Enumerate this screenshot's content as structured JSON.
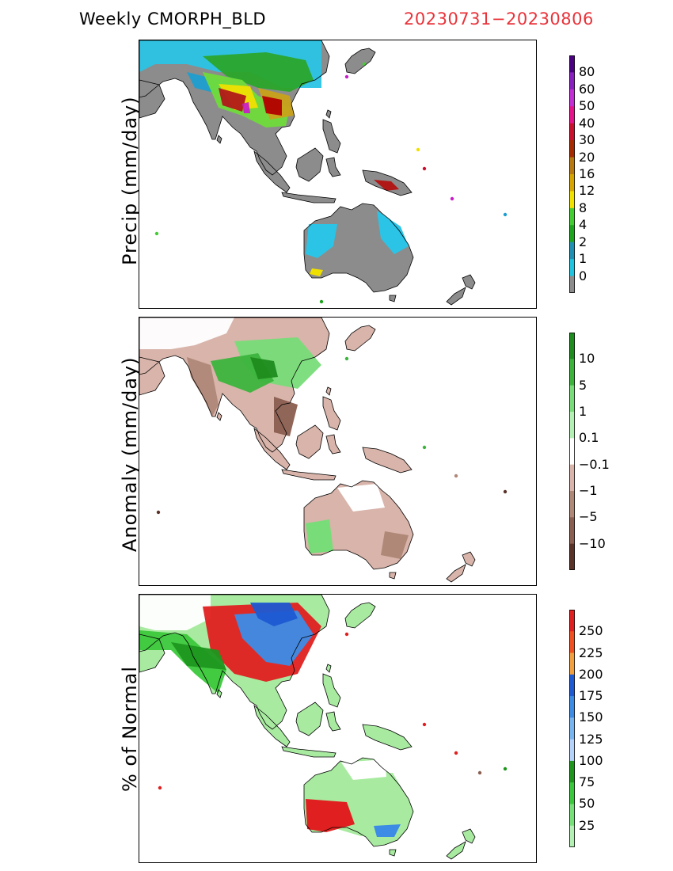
{
  "header": {
    "title": "Weekly CMORPH_BLD",
    "date_range": "20230731−20230806"
  },
  "colors": {
    "date_range": "#e8333a",
    "ocean": "#ffffff",
    "coast": "#000000"
  },
  "panels": [
    {
      "ylabel": "Precip (mm/day)",
      "land_base": "#8c8c8c",
      "colorbar": {
        "labels": [
          "80",
          "60",
          "50",
          "40",
          "30",
          "20",
          "16",
          "12",
          "8",
          "4",
          "2",
          "1",
          "0"
        ],
        "colors": [
          "#4b0082",
          "#8a1fbf",
          "#c22dd4",
          "#e6128c",
          "#c8102e",
          "#a52a00",
          "#b87a10",
          "#d6a500",
          "#f2e200",
          "#44cc33",
          "#1ea51e",
          "#1f8fb2",
          "#1fc4e0",
          "#8c8c8c"
        ]
      },
      "regions": [
        {
          "color": "#2bc4e6"
        },
        {
          "color": "#1e9ed0"
        },
        {
          "color": "#2aa52a"
        },
        {
          "color": "#6fdc3a"
        },
        {
          "color": "#f0e000"
        },
        {
          "color": "#c9a21a"
        },
        {
          "color": "#b01818"
        },
        {
          "color": "#b00000"
        },
        {
          "color": "#c81ec8"
        }
      ]
    },
    {
      "ylabel": "Anomaly (mm/day)",
      "land_base": "#d8b4aa",
      "colorbar": {
        "labels": [
          "10",
          "5",
          "1",
          "0.1",
          "−0.1",
          "−1",
          "−5",
          "−10"
        ],
        "colors": [
          "#1e8c1e",
          "#3cb43c",
          "#78dc78",
          "#b4f0b4",
          "#ffffff",
          "#d8b4aa",
          "#b08878",
          "#8a5e50",
          "#5a3228"
        ]
      },
      "regions": [
        {
          "color": "#ffffff"
        },
        {
          "color": "#b08878"
        },
        {
          "color": "#8a5e50"
        },
        {
          "color": "#78dc78"
        },
        {
          "color": "#3cb43c"
        },
        {
          "color": "#1e8c1e"
        }
      ]
    },
    {
      "ylabel": "% of Normal",
      "land_base": "#a8eba0",
      "colorbar": {
        "labels": [
          "250",
          "225",
          "200",
          "175",
          "150",
          "125",
          "100",
          "75",
          "50",
          "25"
        ],
        "colors": [
          "#e02020",
          "#f05020",
          "#f0a040",
          "#1e5ad2",
          "#3c8ce6",
          "#78b4f0",
          "#b4d2fa",
          "#1e961e",
          "#3cc83c",
          "#78e078",
          "#b4f0b4"
        ]
      },
      "regions": [
        {
          "color": "#ffffff"
        },
        {
          "color": "#3cc83c"
        },
        {
          "color": "#e02020"
        },
        {
          "color": "#3c8ce6"
        },
        {
          "color": "#1e5ad2"
        },
        {
          "color": "#1e961e"
        }
      ]
    }
  ]
}
